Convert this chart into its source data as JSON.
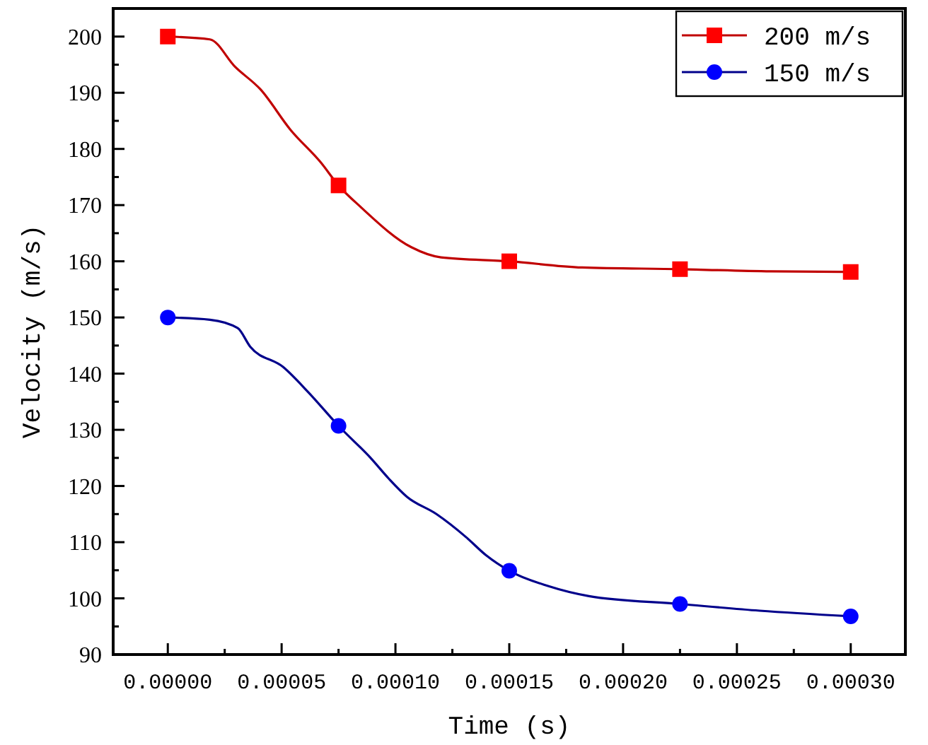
{
  "chart_data": {
    "type": "line",
    "xlabel": "Time (s)",
    "ylabel": "Velocity (m/s)",
    "xlim": [
      -2.4e-05,
      0.000324
    ],
    "ylim": [
      90,
      205
    ],
    "xticks": [
      {
        "value": 0,
        "label": "0.00000"
      },
      {
        "value": 2.5e-05,
        "label": null
      },
      {
        "value": 5e-05,
        "label": "0.00005"
      },
      {
        "value": 7.5e-05,
        "label": null
      },
      {
        "value": 0.0001,
        "label": "0.00010"
      },
      {
        "value": 0.000125,
        "label": null
      },
      {
        "value": 0.00015,
        "label": "0.00015"
      },
      {
        "value": 0.000175,
        "label": null
      },
      {
        "value": 0.0002,
        "label": "0.00020"
      },
      {
        "value": 0.000225,
        "label": null
      },
      {
        "value": 0.00025,
        "label": "0.00025"
      },
      {
        "value": 0.000275,
        "label": null
      },
      {
        "value": 0.0003,
        "label": "0.00030"
      }
    ],
    "yticks": [
      90,
      {
        "value": 95,
        "label": null
      },
      100,
      {
        "value": 105,
        "label": null
      },
      110,
      {
        "value": 115,
        "label": null
      },
      120,
      {
        "value": 125,
        "label": null
      },
      130,
      {
        "value": 135,
        "label": null
      },
      140,
      {
        "value": 145,
        "label": null
      },
      150,
      {
        "value": 155,
        "label": null
      },
      160,
      {
        "value": 165,
        "label": null
      },
      170,
      {
        "value": 175,
        "label": null
      },
      180,
      {
        "value": 185,
        "label": null
      },
      190,
      {
        "value": 195,
        "label": null
      },
      200
    ],
    "legend": "top right",
    "grid": false,
    "series": [
      {
        "name": "200 m/s",
        "marker": "none",
        "color": "#c00000",
        "x": [
          0,
          1.85e-05,
          2.96e-05,
          4.07e-05,
          5.39e-05,
          6.72e-05,
          7.5e-05,
          8.49e-05,
          0.000107,
          0.00012,
          0.00015,
          0.000182,
          0.000225,
          0.000265,
          0.0003
        ],
        "values": [
          200,
          199.5,
          194.6,
          190.6,
          183.4,
          177.6,
          173.5,
          169.6,
          162.5,
          160.7,
          160,
          158.9,
          158.6,
          158.2,
          158.1
        ]
      },
      {
        "type": "scatter",
        "marker": "square",
        "color": "#ff0000",
        "x": [
          0,
          7.5e-05,
          0.00015,
          0.000225,
          0.0003
        ],
        "values": [
          200,
          173.5,
          160,
          158.6,
          158.1
        ]
      },
      {
        "name": "150 m/s",
        "marker": "none",
        "color": "#00008b",
        "x": [
          0,
          1.85e-05,
          3.07e-05,
          3.62e-05,
          5.06e-05,
          6.17e-05,
          7.5e-05,
          8.93e-05,
          9.71e-05,
          0.000105,
          0.000118,
          0.000131,
          0.00014,
          0.00015,
          0.000167,
          0.000185,
          0.000225,
          0.00026,
          0.0003
        ],
        "values": [
          150,
          149.6,
          148.1,
          144.8,
          141.2,
          136.7,
          130.7,
          124.9,
          121.3,
          118.1,
          115,
          110.9,
          107.6,
          104.9,
          102.2,
          100.4,
          99,
          97.8,
          96.8
        ]
      },
      {
        "type": "scatter",
        "marker": "circle",
        "color": "#0000ff",
        "x": [
          0,
          7.5e-05,
          0.00015,
          0.000225,
          0.0003
        ],
        "values": [
          150,
          130.7,
          104.9,
          99,
          96.8
        ]
      }
    ]
  }
}
